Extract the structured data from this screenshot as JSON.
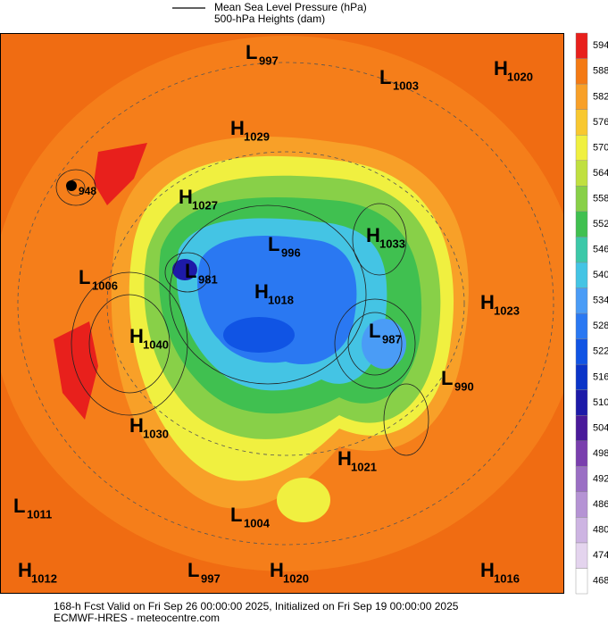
{
  "legend": {
    "items": [
      "Mean Sea Level Pressure (hPa)",
      "500-hPa Heights (dam)"
    ]
  },
  "centers": [
    {
      "letter": "L",
      "value": "997"
    },
    {
      "letter": "L",
      "value": "1003"
    },
    {
      "letter": "H",
      "value": "1020"
    },
    {
      "letter": "H",
      "value": "1029"
    },
    {
      "value": "948"
    },
    {
      "letter": "H",
      "value": "1027"
    },
    {
      "letter": "H",
      "value": "1033"
    },
    {
      "letter": "L",
      "value": "996"
    },
    {
      "letter": "L",
      "value": "981"
    },
    {
      "letter": "L",
      "value": "1006"
    },
    {
      "letter": "H",
      "value": "1018"
    },
    {
      "letter": "H",
      "value": "1023"
    },
    {
      "letter": "H",
      "value": "1040"
    },
    {
      "letter": "L",
      "value": "987"
    },
    {
      "letter": "L",
      "value": "990"
    },
    {
      "letter": "H",
      "value": "1030"
    },
    {
      "letter": "H",
      "value": "1021"
    },
    {
      "letter": "L",
      "value": "1011"
    },
    {
      "letter": "L",
      "value": "1004"
    },
    {
      "letter": "H",
      "value": "1012"
    },
    {
      "letter": "L",
      "value": "997"
    },
    {
      "letter": "H",
      "value": "1020"
    },
    {
      "letter": "H",
      "value": "1016"
    }
  ],
  "colorbar": {
    "ticks": [
      "468",
      "474",
      "480",
      "486",
      "492",
      "498",
      "504",
      "510",
      "516",
      "522",
      "528",
      "534",
      "540",
      "546",
      "552",
      "558",
      "564",
      "570",
      "576",
      "582",
      "588",
      "594"
    ],
    "colors": [
      "#ffffff",
      "#e4d4ee",
      "#cdb4e2",
      "#b593d4",
      "#9b6fc4",
      "#7a3fae",
      "#4a1a9a",
      "#1d1aa8",
      "#0a34c8",
      "#1054e4",
      "#2a78f2",
      "#4a9cf6",
      "#44c4e4",
      "#3cc8a8",
      "#40c050",
      "#88d048",
      "#c0e040",
      "#f0f040",
      "#f8c830",
      "#f8a028",
      "#f47a14",
      "#e8201c"
    ]
  },
  "footer": [
    "168-h Fcst Valid on Fri Sep 26 00:00:00 2025, Initialized on Fri Sep 19 00:00:00 2025",
    "ECMWF-HRES  - meteocentre.com"
  ]
}
